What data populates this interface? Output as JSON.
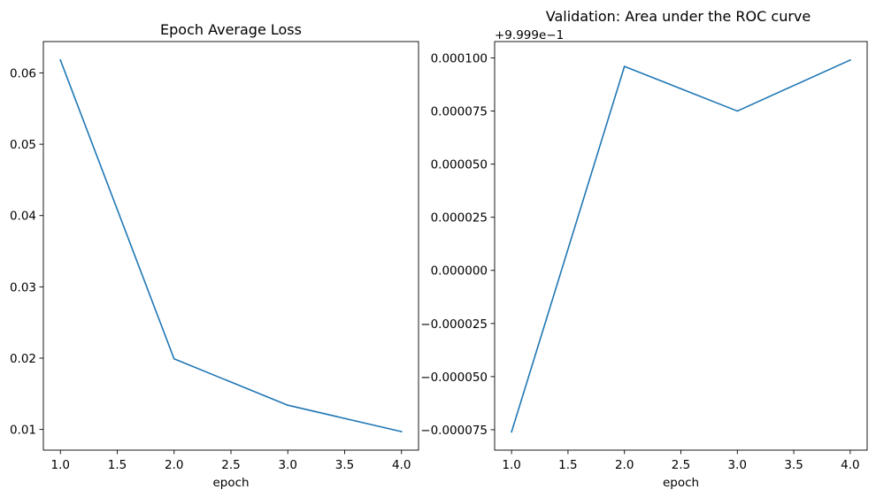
{
  "chart_data": [
    {
      "type": "line",
      "title": "Epoch Average Loss",
      "xlabel": "epoch",
      "ylabel": "",
      "x": [
        1.0,
        2.0,
        3.0,
        4.0
      ],
      "series": [
        {
          "values": [
            0.0618,
            0.0199,
            0.0134,
            0.0097
          ],
          "color": "#1f77b4"
        }
      ],
      "xlim": [
        0.85,
        4.15
      ],
      "ylim": [
        0.0071,
        0.0644
      ],
      "xticks": [
        1.0,
        1.5,
        2.0,
        2.5,
        3.0,
        3.5,
        4.0
      ],
      "xtick_labels": [
        "1.0",
        "1.5",
        "2.0",
        "2.5",
        "3.0",
        "3.5",
        "4.0"
      ],
      "yticks": [
        0.01,
        0.02,
        0.03,
        0.04,
        0.05,
        0.06
      ],
      "ytick_labels": [
        "0.01",
        "0.02",
        "0.03",
        "0.04",
        "0.05",
        "0.06"
      ],
      "offset_label": "",
      "grid": false
    },
    {
      "type": "line",
      "title": "Validation: Area under the ROC curve",
      "xlabel": "epoch",
      "ylabel": "",
      "x": [
        1.0,
        2.0,
        3.0,
        4.0
      ],
      "series": [
        {
          "values": [
            -7.6e-05,
            9.6e-05,
            7.5e-05,
            9.9e-05
          ],
          "color": "#1f77b4"
        }
      ],
      "xlim": [
        0.85,
        4.15
      ],
      "ylim": [
        -8.46e-05,
        0.0001077
      ],
      "xticks": [
        1.0,
        1.5,
        2.0,
        2.5,
        3.0,
        3.5,
        4.0
      ],
      "xtick_labels": [
        "1.0",
        "1.5",
        "2.0",
        "2.5",
        "3.0",
        "3.5",
        "4.0"
      ],
      "yticks": [
        0.0001,
        7.5e-05,
        5e-05,
        2.5e-05,
        0.0,
        -2.5e-05,
        -5e-05,
        -7.5e-05
      ],
      "ytick_labels": [
        "0.000100",
        "0.000075",
        "0.000050",
        "0.000025",
        "0.000000",
        "−0.000025",
        "−0.000050",
        "−0.000075"
      ],
      "offset_label": "+9.999e−1",
      "grid": false
    }
  ]
}
